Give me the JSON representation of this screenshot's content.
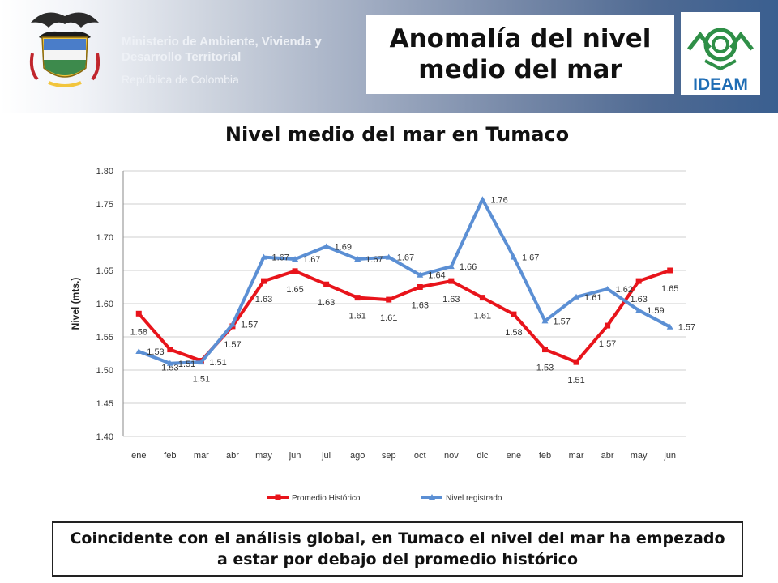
{
  "header": {
    "ministry": "Ministerio de Ambiente, Vivienda y Desarrollo Territorial",
    "republic": "República de Colombia",
    "title": "Anomalía del nivel medio del mar",
    "logo_text": "IDEAM"
  },
  "colors": {
    "historic": "#e8141b",
    "registered": "#5b8fd4",
    "ideam_green": "#2f8f47",
    "ideam_blue": "#1f6db5"
  },
  "chart_data": {
    "type": "line",
    "title": "Nivel medio del mar en Tumaco",
    "ylabel": "Nivel (mts.)",
    "xlabel": "",
    "categories": [
      "ene",
      "feb",
      "mar",
      "abr",
      "may",
      "jun",
      "jul",
      "ago",
      "sep",
      "oct",
      "nov",
      "dic",
      "ene",
      "feb",
      "mar",
      "abr",
      "may",
      "jun"
    ],
    "ylim": [
      1.4,
      1.8
    ],
    "yticks": [
      "1.40",
      "1.45",
      "1.50",
      "1.55",
      "1.60",
      "1.65",
      "1.70",
      "1.75",
      "1.80"
    ],
    "grid": true,
    "legend_position": "bottom",
    "series": [
      {
        "name": "Promedio Histórico",
        "values": [
          1.585,
          1.531,
          1.514,
          1.566,
          1.634,
          1.649,
          1.629,
          1.609,
          1.606,
          1.625,
          1.634,
          1.609,
          1.584,
          1.531,
          1.512,
          1.567,
          1.634,
          1.65
        ],
        "labels": [
          "1.58",
          "1.53",
          "1.51",
          "1.57",
          "1.63",
          "1.65",
          "1.63",
          "1.61",
          "1.61",
          "1.63",
          "1.63",
          "1.61",
          "1.58",
          "1.53",
          "1.51",
          "1.57",
          "1.63",
          "1.65"
        ]
      },
      {
        "name": "Nivel registrado",
        "values": [
          1.528,
          1.51,
          1.512,
          1.569,
          1.67,
          1.667,
          1.686,
          1.667,
          1.67,
          1.643,
          1.656,
          1.757,
          1.67,
          1.574,
          1.61,
          1.622,
          1.59,
          1.565
        ],
        "labels": [
          "1.53",
          "1.51",
          "1.51",
          "1.57",
          "1.67",
          "1.67",
          "1.69",
          "1.67",
          "1.67",
          "1.64",
          "1.66",
          "1.76",
          "1.67",
          "1.57",
          "1.61",
          "1.62",
          "1.59",
          "1.57"
        ]
      }
    ]
  },
  "caption": "Coincidente con el análisis global, en Tumaco el nivel del mar ha empezado a estar por debajo del promedio histórico"
}
